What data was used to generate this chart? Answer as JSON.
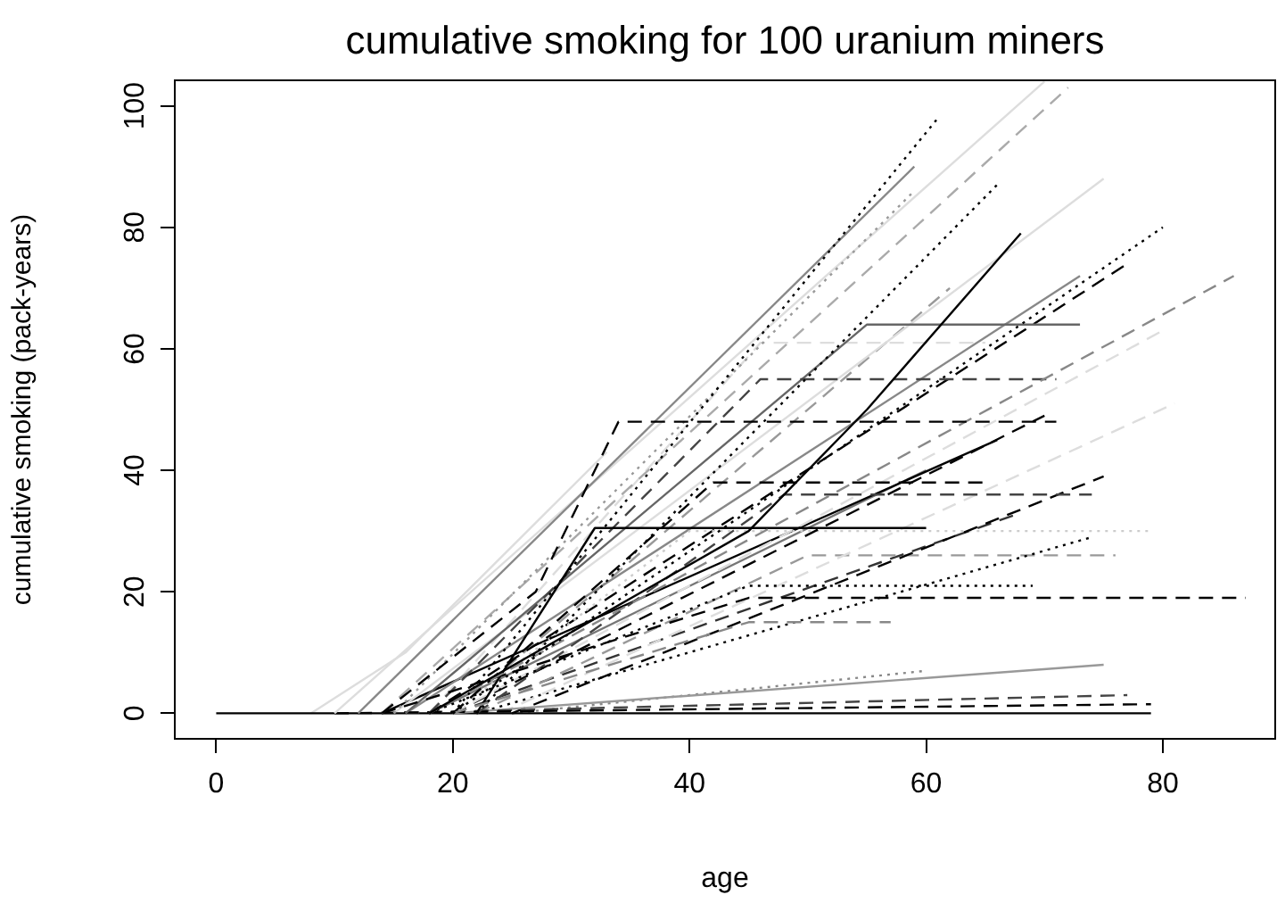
{
  "chart_data": {
    "type": "line",
    "title": "cumulative smoking for 100 uranium miners",
    "xlabel": "age",
    "ylabel": "cumulative smoking (pack-years)",
    "xlim": [
      -3.5,
      89.5
    ],
    "ylim": [
      -4.2,
      104.2
    ],
    "xticks": [
      0,
      20,
      40,
      60,
      80
    ],
    "yticks": [
      0,
      20,
      40,
      60,
      80,
      100
    ],
    "grid": false,
    "legend": false,
    "marker": "none",
    "series": [
      {
        "color": "#000000",
        "line_style": "dashed",
        "x": [
          14,
          27,
          34,
          71
        ],
        "values": [
          0,
          20,
          48,
          48
        ]
      },
      {
        "color": "#000000",
        "line_style": "solid",
        "x": [
          18,
          45,
          55,
          68
        ],
        "values": [
          0,
          30,
          50,
          79
        ]
      },
      {
        "color": "#000000",
        "line_style": "dotted",
        "x": [
          20,
          61
        ],
        "values": [
          0,
          98
        ]
      },
      {
        "color": "#888888",
        "line_style": "solid",
        "x": [
          12,
          59
        ],
        "values": [
          0,
          90
        ]
      },
      {
        "color": "#999999",
        "line_style": "dotted",
        "x": [
          15,
          59
        ],
        "values": [
          0,
          86
        ]
      },
      {
        "color": "#dddddd",
        "line_style": "solid",
        "x": [
          10,
          70
        ],
        "values": [
          0,
          104
        ]
      },
      {
        "color": "#aaaaaa",
        "line_style": "dashed",
        "x": [
          14,
          72
        ],
        "values": [
          0,
          103
        ]
      },
      {
        "color": "#000000",
        "line_style": "dotted",
        "x": [
          22,
          66
        ],
        "values": [
          0,
          87
        ]
      },
      {
        "color": "#000000",
        "line_style": "dotted",
        "x": [
          20,
          80
        ],
        "values": [
          0,
          80
        ]
      },
      {
        "color": "#888888",
        "line_style": "dashed",
        "x": [
          18,
          86
        ],
        "values": [
          0,
          72
        ]
      },
      {
        "color": "#000000",
        "line_style": "dashed",
        "x": [
          14,
          45,
          87
        ],
        "values": [
          0,
          19,
          19
        ]
      },
      {
        "color": "#000000",
        "line_style": "dotted",
        "x": [
          18,
          45,
          69
        ],
        "values": [
          0,
          21,
          21
        ]
      },
      {
        "color": "#888888",
        "line_style": "dashed",
        "x": [
          20,
          45,
          57
        ],
        "values": [
          0,
          15,
          15
        ]
      },
      {
        "color": "#000000",
        "line_style": "solid",
        "x": [
          22,
          32,
          60
        ],
        "values": [
          0,
          30.5,
          30.5
        ]
      },
      {
        "color": "#000000",
        "line_style": "dashed",
        "x": [
          20,
          42,
          65
        ],
        "values": [
          0,
          38,
          38
        ]
      },
      {
        "color": "#444444",
        "line_style": "dashed",
        "x": [
          22,
          48,
          74
        ],
        "values": [
          0,
          36,
          36
        ]
      },
      {
        "color": "#444444",
        "line_style": "dashed",
        "x": [
          18,
          46,
          71
        ],
        "values": [
          0,
          55,
          55
        ]
      },
      {
        "color": "#666666",
        "line_style": "solid",
        "x": [
          16,
          55,
          73
        ],
        "values": [
          0,
          64,
          64
        ]
      },
      {
        "color": "#000000",
        "line_style": "dashed",
        "x": [
          10,
          79
        ],
        "values": [
          0,
          1.5
        ]
      },
      {
        "color": "#444444",
        "line_style": "dashed",
        "x": [
          14,
          77
        ],
        "values": [
          0,
          3
        ]
      },
      {
        "color": "#999999",
        "line_style": "solid",
        "x": [
          20,
          75
        ],
        "values": [
          0,
          8
        ]
      },
      {
        "color": "#000000",
        "line_style": "solid",
        "x": [
          0,
          79
        ],
        "values": [
          0,
          0
        ]
      },
      {
        "color": "#dddddd",
        "line_style": "solid",
        "x": [
          15,
          75
        ],
        "values": [
          0,
          88
        ]
      },
      {
        "color": "#dddddd",
        "line_style": "dashed",
        "x": [
          20,
          80
        ],
        "values": [
          0,
          63
        ]
      },
      {
        "color": "#dddddd",
        "line_style": "dashed",
        "x": [
          24,
          81
        ],
        "values": [
          0,
          51
        ]
      },
      {
        "color": "#000000",
        "line_style": "dashed",
        "x": [
          20,
          70
        ],
        "values": [
          0,
          49
        ]
      },
      {
        "color": "#000000",
        "line_style": "dashed",
        "x": [
          25,
          75
        ],
        "values": [
          0,
          39
        ]
      },
      {
        "color": "#000000",
        "line_style": "dotted",
        "x": [
          22,
          74
        ],
        "values": [
          0,
          29
        ]
      },
      {
        "color": "#cccccc",
        "line_style": "dotted",
        "x": [
          20,
          40,
          79
        ],
        "values": [
          0,
          30,
          30
        ]
      },
      {
        "color": "#999999",
        "line_style": "dashed",
        "x": [
          22,
          50,
          76
        ],
        "values": [
          0,
          26,
          26
        ]
      },
      {
        "color": "#000000",
        "line_style": "dashed",
        "x": [
          18,
          77
        ],
        "values": [
          0,
          74
        ]
      },
      {
        "color": "#888888",
        "line_style": "dotted",
        "x": [
          25,
          60
        ],
        "values": [
          0,
          7
        ]
      },
      {
        "color": "#888888",
        "line_style": "solid",
        "x": [
          16,
          73
        ],
        "values": [
          0,
          72
        ]
      },
      {
        "color": "#dddddd",
        "line_style": "solid",
        "x": [
          8,
          16,
          33
        ],
        "values": [
          0,
          10,
          43
        ]
      },
      {
        "color": "#dddddd",
        "line_style": "dashed",
        "x": [
          18,
          46,
          65
        ],
        "values": [
          0,
          61,
          61
        ]
      },
      {
        "color": "#999999",
        "line_style": "dashed",
        "x": [
          20,
          62
        ],
        "values": [
          0,
          70
        ]
      },
      {
        "color": "#000000",
        "line_style": "solid",
        "x": [
          14,
          66
        ],
        "values": [
          0,
          45
        ]
      },
      {
        "color": "#777777",
        "line_style": "solid",
        "x": [
          18,
          60
        ],
        "values": [
          0,
          40
        ]
      },
      {
        "color": "#333333",
        "line_style": "dashed",
        "x": [
          20,
          68
        ],
        "values": [
          0,
          33
        ]
      }
    ]
  }
}
